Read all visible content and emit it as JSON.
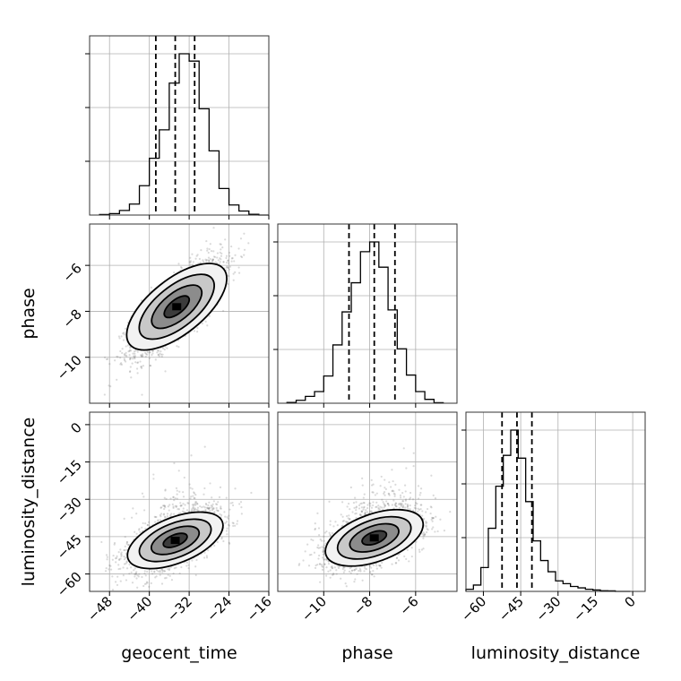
{
  "chart_data": {
    "type": "corner",
    "parameters": [
      "geocent_time",
      "phase",
      "luminosity_distance"
    ],
    "axis_labels": {
      "geocent_time": "geocent_time",
      "phase": "phase",
      "luminosity_distance": "luminosity_distance"
    },
    "ranges": {
      "geocent_time": [
        -52,
        -16
      ],
      "phase": [
        -12,
        -4.2
      ],
      "luminosity_distance": [
        -67,
        5
      ]
    },
    "ticks": {
      "geocent_time": [
        -48,
        -40,
        -32,
        -24,
        -16
      ],
      "phase": [
        -10,
        -8,
        -6
      ],
      "luminosity_distance": [
        -60,
        -45,
        -30,
        -15,
        0
      ]
    },
    "tick_labels": {
      "geocent_time": [
        "−48",
        "−40",
        "−32",
        "−24",
        "−16"
      ],
      "phase": [
        "−10",
        "−8",
        "−6"
      ],
      "luminosity_distance": [
        "−60",
        "−45",
        "−30",
        "−15",
        "0"
      ]
    },
    "quantiles": {
      "geocent_time": [
        -38.7,
        -34.8,
        -30.9
      ],
      "phase": [
        -8.9,
        -7.8,
        -6.9
      ],
      "luminosity_distance": [
        -52.5,
        -46.5,
        -40.5
      ]
    },
    "histograms": {
      "geocent_time": {
        "bin_edges": [
          -50,
          -48,
          -46,
          -44,
          -42,
          -40,
          -38,
          -36,
          -34,
          -32,
          -30,
          -28,
          -26,
          -24,
          -22,
          -20,
          -18,
          -16
        ],
        "counts": [
          3,
          8,
          25,
          60,
          160,
          310,
          465,
          720,
          880,
          840,
          580,
          350,
          145,
          55,
          22,
          4,
          0
        ]
      },
      "phase": {
        "bin_edges": [
          -11.6,
          -11.2,
          -10.8,
          -10.4,
          -10.0,
          -9.6,
          -9.2,
          -8.8,
          -8.4,
          -8.0,
          -7.6,
          -7.2,
          -6.8,
          -6.4,
          -6.0,
          -5.6,
          -5.2,
          -4.8
        ],
        "counts": [
          4,
          15,
          35,
          60,
          140,
          300,
          470,
          620,
          780,
          830,
          700,
          480,
          280,
          145,
          60,
          20,
          3
        ]
      },
      "luminosity_distance": {
        "bin_edges": [
          -67,
          -64,
          -61,
          -58,
          -55,
          -52,
          -49,
          -46,
          -43,
          -40,
          -37,
          -34,
          -31,
          -28,
          -25,
          -22,
          -19,
          -16,
          -13,
          -10,
          -7,
          -4,
          -1
        ],
        "counts": [
          15,
          45,
          170,
          450,
          750,
          970,
          1150,
          950,
          640,
          360,
          220,
          140,
          75,
          55,
          35,
          25,
          15,
          10,
          5,
          4,
          0,
          0
        ]
      }
    },
    "contours_2d": [
      {
        "x": "geocent_time",
        "y": "phase",
        "center": [
          -34.5,
          -7.8
        ],
        "correlation": 0.78,
        "levels_sigma": [
          0.5,
          1.0,
          1.5,
          2.0
        ],
        "sigma": [
          4.5,
          1.0
        ]
      },
      {
        "x": "geocent_time",
        "y": "luminosity_distance",
        "center": [
          -34.8,
          -46.5
        ],
        "correlation": 0.6,
        "levels_sigma": [
          0.5,
          1.0,
          1.5,
          2.0
        ],
        "sigma": [
          4.5,
          6.0
        ]
      },
      {
        "x": "phase",
        "y": "luminosity_distance",
        "center": [
          -7.8,
          -45.5
        ],
        "correlation": 0.55,
        "levels_sigma": [
          0.5,
          1.0,
          1.5,
          2.0
        ],
        "sigma": [
          1.0,
          6.0
        ]
      }
    ],
    "grid": true,
    "title": ""
  }
}
